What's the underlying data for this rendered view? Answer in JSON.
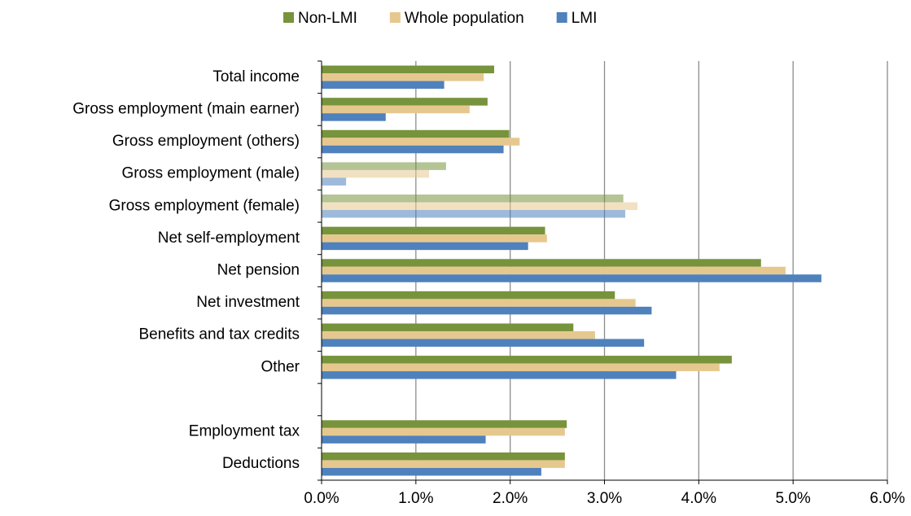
{
  "chart_data": {
    "type": "hbar",
    "categories": [
      "Total income",
      "Gross employment (main earner)",
      "Gross employment (others)",
      "Gross employment (male)",
      "Gross employment (female)",
      "Net self-employment ",
      "Net pension",
      "Net investment",
      "Benefits and tax credits",
      "Other",
      null,
      "Employment tax",
      "Deductions"
    ],
    "series": [
      {
        "name": "Non-LMI",
        "color": "#77933c",
        "values": [
          1.83,
          1.76,
          1.99,
          1.32,
          3.2,
          2.37,
          4.66,
          3.11,
          2.67,
          4.35,
          null,
          2.6,
          2.58
        ]
      },
      {
        "name": "Whole population",
        "color": "#e6c88f",
        "values": [
          1.72,
          1.57,
          2.1,
          1.14,
          3.35,
          2.39,
          4.92,
          3.33,
          2.9,
          4.22,
          null,
          2.58,
          2.58
        ]
      },
      {
        "name": "LMI",
        "color": "#4f81bd",
        "values": [
          1.3,
          0.68,
          1.93,
          0.26,
          3.22,
          2.19,
          5.3,
          3.5,
          3.42,
          3.76,
          null,
          1.74,
          2.33
        ]
      }
    ],
    "muted_categories": [
      3,
      4
    ],
    "xlim": [
      0,
      6
    ],
    "xticks": [
      {
        "value": 0,
        "label": "0.0%"
      },
      {
        "value": 1,
        "label": "1.0%"
      },
      {
        "value": 2,
        "label": "2.0%"
      },
      {
        "value": 3,
        "label": "3.0%"
      },
      {
        "value": 4,
        "label": "4.0%"
      },
      {
        "value": 5,
        "label": "5.0%"
      },
      {
        "value": 6,
        "label": "6.0%"
      }
    ],
    "grid": true,
    "legend": "top"
  }
}
